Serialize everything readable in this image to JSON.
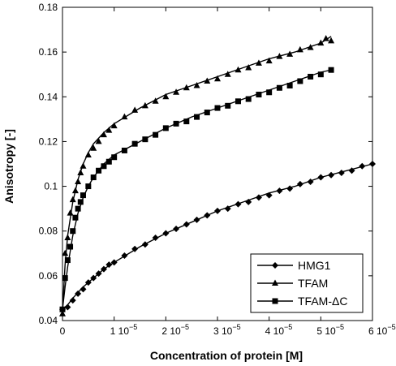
{
  "chart_data": {
    "type": "scatter",
    "xlabel": "Concentration of protein [M]",
    "ylabel": "Anisotropy [-]",
    "xlim": [
      0,
      6e-05
    ],
    "ylim": [
      0.04,
      0.18
    ],
    "xticks": [
      {
        "value": 0,
        "mantissa": "0",
        "exp": ""
      },
      {
        "value": 1e-05,
        "mantissa": "1 10",
        "exp": "−5"
      },
      {
        "value": 2e-05,
        "mantissa": "2 10",
        "exp": "−5"
      },
      {
        "value": 3e-05,
        "mantissa": "3 10",
        "exp": "−5"
      },
      {
        "value": 4e-05,
        "mantissa": "4 10",
        "exp": "−5"
      },
      {
        "value": 5e-05,
        "mantissa": "5 10",
        "exp": "−5"
      },
      {
        "value": 6e-05,
        "mantissa": "6 10",
        "exp": "−5"
      }
    ],
    "yticks": [
      "0.04",
      "0.06",
      "0.08",
      "0.1",
      "0.12",
      "0.14",
      "0.16",
      "0.18"
    ],
    "grid": false,
    "legend_position": "bottom-right",
    "series": [
      {
        "name": "HMG1",
        "marker": "diamond",
        "points": [
          [
            0,
            0.045
          ],
          [
            1e-06,
            0.046
          ],
          [
            2e-06,
            0.049
          ],
          [
            3e-06,
            0.052
          ],
          [
            4e-06,
            0.054
          ],
          [
            5e-06,
            0.057
          ],
          [
            6e-06,
            0.059
          ],
          [
            7e-06,
            0.061
          ],
          [
            8e-06,
            0.063
          ],
          [
            9e-06,
            0.065
          ],
          [
            1e-05,
            0.066
          ],
          [
            1.2e-05,
            0.069
          ],
          [
            1.4e-05,
            0.072
          ],
          [
            1.6e-05,
            0.074
          ],
          [
            1.8e-05,
            0.077
          ],
          [
            2e-05,
            0.079
          ],
          [
            2.2e-05,
            0.081
          ],
          [
            2.4e-05,
            0.083
          ],
          [
            2.6e-05,
            0.085
          ],
          [
            2.8e-05,
            0.087
          ],
          [
            3e-05,
            0.089
          ],
          [
            3.2e-05,
            0.09
          ],
          [
            3.4e-05,
            0.092
          ],
          [
            3.6e-05,
            0.093
          ],
          [
            3.8e-05,
            0.095
          ],
          [
            4e-05,
            0.096
          ],
          [
            4.2e-05,
            0.098
          ],
          [
            4.4e-05,
            0.099
          ],
          [
            4.6e-05,
            0.101
          ],
          [
            4.8e-05,
            0.102
          ],
          [
            5e-05,
            0.104
          ],
          [
            5.2e-05,
            0.105
          ],
          [
            5.4e-05,
            0.106
          ],
          [
            5.6e-05,
            0.107
          ],
          [
            5.8e-05,
            0.109
          ],
          [
            6e-05,
            0.11
          ]
        ],
        "fit": [
          [
            0,
            0.045
          ],
          [
            1e-06,
            0.047
          ],
          [
            2e-06,
            0.05
          ],
          [
            4e-06,
            0.055
          ],
          [
            6e-06,
            0.059
          ],
          [
            8e-06,
            0.063
          ],
          [
            1e-05,
            0.066
          ],
          [
            1.5e-05,
            0.073
          ],
          [
            2e-05,
            0.079
          ],
          [
            2.5e-05,
            0.084
          ],
          [
            3e-05,
            0.089
          ],
          [
            3.5e-05,
            0.093
          ],
          [
            4e-05,
            0.097
          ],
          [
            4.5e-05,
            0.1
          ],
          [
            5e-05,
            0.104
          ],
          [
            5.5e-05,
            0.107
          ],
          [
            6e-05,
            0.11
          ]
        ]
      },
      {
        "name": "TFAM",
        "marker": "triangle",
        "points": [
          [
            0,
            0.043
          ],
          [
            5e-07,
            0.07
          ],
          [
            1e-06,
            0.077
          ],
          [
            1.5e-06,
            0.088
          ],
          [
            2e-06,
            0.094
          ],
          [
            2.5e-06,
            0.098
          ],
          [
            3e-06,
            0.102
          ],
          [
            3.5e-06,
            0.106
          ],
          [
            4e-06,
            0.109
          ],
          [
            5e-06,
            0.114
          ],
          [
            6e-06,
            0.117
          ],
          [
            7e-06,
            0.12
          ],
          [
            8e-06,
            0.123
          ],
          [
            9e-06,
            0.125
          ],
          [
            1e-05,
            0.127
          ],
          [
            1.2e-05,
            0.131
          ],
          [
            1.4e-05,
            0.134
          ],
          [
            1.6e-05,
            0.136
          ],
          [
            1.8e-05,
            0.138
          ],
          [
            2e-05,
            0.14
          ],
          [
            2.2e-05,
            0.142
          ],
          [
            2.4e-05,
            0.144
          ],
          [
            2.6e-05,
            0.145
          ],
          [
            2.8e-05,
            0.147
          ],
          [
            3e-05,
            0.148
          ],
          [
            3.2e-05,
            0.15
          ],
          [
            3.4e-05,
            0.152
          ],
          [
            3.6e-05,
            0.153
          ],
          [
            3.8e-05,
            0.155
          ],
          [
            4e-05,
            0.156
          ],
          [
            4.2e-05,
            0.158
          ],
          [
            4.4e-05,
            0.159
          ],
          [
            4.6e-05,
            0.161
          ],
          [
            4.8e-05,
            0.162
          ],
          [
            5e-05,
            0.164
          ],
          [
            5.1e-05,
            0.166
          ],
          [
            5.2e-05,
            0.165
          ]
        ],
        "fit": [
          [
            0,
            0.044
          ],
          [
            5e-07,
            0.065
          ],
          [
            1e-06,
            0.078
          ],
          [
            2e-06,
            0.093
          ],
          [
            3e-06,
            0.103
          ],
          [
            4e-06,
            0.11
          ],
          [
            5e-06,
            0.115
          ],
          [
            6e-06,
            0.119
          ],
          [
            8e-06,
            0.124
          ],
          [
            1e-05,
            0.128
          ],
          [
            1.5e-05,
            0.135
          ],
          [
            2e-05,
            0.141
          ],
          [
            2.5e-05,
            0.145
          ],
          [
            3e-05,
            0.149
          ],
          [
            3.5e-05,
            0.153
          ],
          [
            4e-05,
            0.157
          ],
          [
            4.5e-05,
            0.16
          ],
          [
            5e-05,
            0.164
          ],
          [
            5.2e-05,
            0.167
          ]
        ]
      },
      {
        "name": "TFAM-ΔC",
        "marker": "square",
        "points": [
          [
            0,
            0.045
          ],
          [
            5e-07,
            0.059
          ],
          [
            1e-06,
            0.067
          ],
          [
            1.5e-06,
            0.073
          ],
          [
            2e-06,
            0.08
          ],
          [
            2.5e-06,
            0.086
          ],
          [
            3e-06,
            0.09
          ],
          [
            3.5e-06,
            0.093
          ],
          [
            4e-06,
            0.096
          ],
          [
            5e-06,
            0.1
          ],
          [
            6e-06,
            0.104
          ],
          [
            7e-06,
            0.107
          ],
          [
            8e-06,
            0.109
          ],
          [
            9e-06,
            0.111
          ],
          [
            1e-05,
            0.113
          ],
          [
            1.2e-05,
            0.116
          ],
          [
            1.4e-05,
            0.119
          ],
          [
            1.6e-05,
            0.121
          ],
          [
            1.8e-05,
            0.123
          ],
          [
            2e-05,
            0.126
          ],
          [
            2.2e-05,
            0.128
          ],
          [
            2.4e-05,
            0.129
          ],
          [
            2.6e-05,
            0.131
          ],
          [
            2.8e-05,
            0.133
          ],
          [
            3e-05,
            0.135
          ],
          [
            3.2e-05,
            0.136
          ],
          [
            3.4e-05,
            0.138
          ],
          [
            3.6e-05,
            0.139
          ],
          [
            3.8e-05,
            0.141
          ],
          [
            4e-05,
            0.142
          ],
          [
            4.2e-05,
            0.144
          ],
          [
            4.4e-05,
            0.145
          ],
          [
            4.6e-05,
            0.147
          ],
          [
            4.8e-05,
            0.149
          ],
          [
            5e-05,
            0.15
          ],
          [
            5.2e-05,
            0.152
          ]
        ],
        "fit": [
          [
            0,
            0.045
          ],
          [
            5e-07,
            0.055
          ],
          [
            1e-06,
            0.064
          ],
          [
            2e-06,
            0.078
          ],
          [
            3e-06,
            0.088
          ],
          [
            4e-06,
            0.095
          ],
          [
            5e-06,
            0.1
          ],
          [
            6e-06,
            0.104
          ],
          [
            8e-06,
            0.11
          ],
          [
            1e-05,
            0.114
          ],
          [
            1.5e-05,
            0.12
          ],
          [
            2e-05,
            0.126
          ],
          [
            2.5e-05,
            0.131
          ],
          [
            3e-05,
            0.135
          ],
          [
            3.5e-05,
            0.139
          ],
          [
            4e-05,
            0.143
          ],
          [
            4.5e-05,
            0.147
          ],
          [
            5e-05,
            0.151
          ],
          [
            5.2e-05,
            0.152
          ]
        ]
      }
    ]
  }
}
